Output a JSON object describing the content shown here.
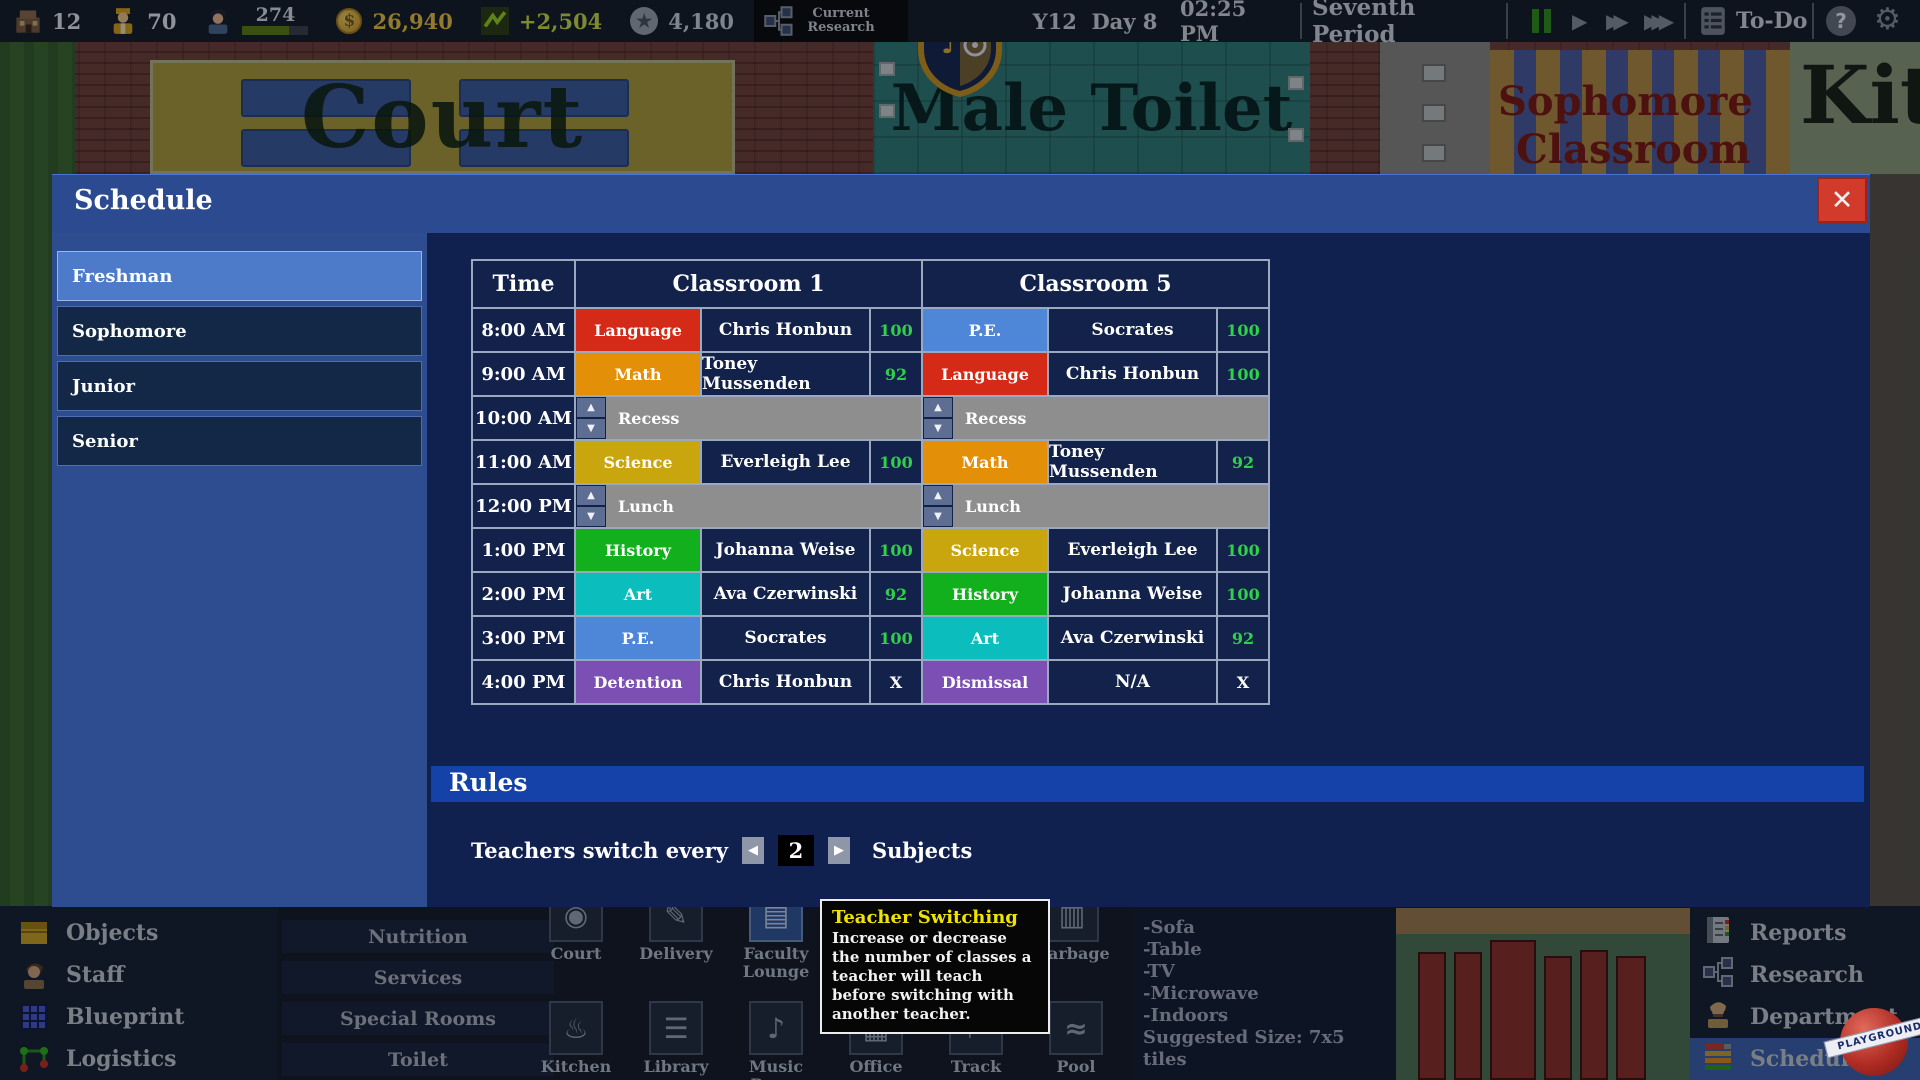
{
  "top_bar": {
    "stats": [
      {
        "icon": "school-building-icon",
        "value": "12",
        "color": "#e6eaee"
      },
      {
        "icon": "principal-icon",
        "value": "70",
        "color": "#e6eaee"
      },
      {
        "icon": "student-icon",
        "value": "274",
        "has_progress": true,
        "progress_pct": 70
      },
      {
        "icon": "coin-icon",
        "value": "26,940",
        "color": "#e8c040"
      },
      {
        "icon": "profit-graph-icon",
        "value": "+2,504",
        "color": "#c8d84a"
      },
      {
        "icon": "star-icon",
        "value": "4,180",
        "color": "#c8d0d8"
      }
    ],
    "current_research": "Current Research",
    "year_day": "Y12  Day 8",
    "clock": "02:25 PM",
    "period": "Seventh Period",
    "todo": "To-Do",
    "help": "?"
  },
  "background": {
    "court_label": "Court",
    "male_toilet_label": "Male Toilet",
    "sophomore_label_line1": "Sophomore",
    "sophomore_label_line2": "Classroom",
    "kitchen_label": "Kitc"
  },
  "schedule_modal": {
    "title": "Schedule",
    "close_glyph": "✕",
    "grade_tabs": [
      {
        "label": "Freshman",
        "selected": true
      },
      {
        "label": "Sophomore",
        "selected": false
      },
      {
        "label": "Junior",
        "selected": false
      },
      {
        "label": "Senior",
        "selected": false
      }
    ],
    "table": {
      "time_header": "Time",
      "classroom_headers": [
        "Classroom 1",
        "Classroom 5"
      ],
      "subject_colors": {
        "Language": "#d62a18",
        "Math": "#e39008",
        "P.E.": "#4e86d8",
        "Science": "#c9a60d",
        "History": "#12b01c",
        "Art": "#0bbdbd",
        "Detention": "#7b4fb4",
        "Dismissal": "#7b4fb4"
      },
      "score_good_color": "#2fd14a",
      "rows": [
        {
          "time": "8:00 AM",
          "type": "class",
          "cells": [
            {
              "subject": "Language",
              "teacher": "Chris Honbun",
              "score": "100"
            },
            {
              "subject": "P.E.",
              "teacher": "Socrates",
              "score": "100"
            }
          ]
        },
        {
          "time": "9:00 AM",
          "type": "class",
          "cells": [
            {
              "subject": "Math",
              "teacher": "Toney Mussenden",
              "score": "92"
            },
            {
              "subject": "Language",
              "teacher": "Chris Honbun",
              "score": "100"
            }
          ]
        },
        {
          "time": "10:00 AM",
          "type": "break",
          "label": "Recess"
        },
        {
          "time": "11:00 AM",
          "type": "class",
          "cells": [
            {
              "subject": "Science",
              "teacher": "Everleigh Lee",
              "score": "100"
            },
            {
              "subject": "Math",
              "teacher": "Toney Mussenden",
              "score": "92"
            }
          ]
        },
        {
          "time": "12:00 PM",
          "type": "break",
          "label": "Lunch"
        },
        {
          "time": "1:00 PM",
          "type": "class",
          "cells": [
            {
              "subject": "History",
              "teacher": "Johanna Weise",
              "score": "100"
            },
            {
              "subject": "Science",
              "teacher": "Everleigh Lee",
              "score": "100"
            }
          ]
        },
        {
          "time": "2:00 PM",
          "type": "class",
          "cells": [
            {
              "subject": "Art",
              "teacher": "Ava Czerwinski",
              "score": "92"
            },
            {
              "subject": "History",
              "teacher": "Johanna Weise",
              "score": "100"
            }
          ]
        },
        {
          "time": "3:00 PM",
          "type": "class",
          "cells": [
            {
              "subject": "P.E.",
              "teacher": "Socrates",
              "score": "100"
            },
            {
              "subject": "Art",
              "teacher": "Ava Czerwinski",
              "score": "92"
            }
          ]
        },
        {
          "time": "4:00 PM",
          "type": "class",
          "cells": [
            {
              "subject": "Detention",
              "teacher": "Chris Honbun",
              "score": "X"
            },
            {
              "subject": "Dismissal",
              "teacher": "N/A",
              "score": "X"
            }
          ]
        }
      ]
    },
    "rules": {
      "header": "Rules",
      "switch_rule": {
        "prefix": "Teachers switch every",
        "value": "2",
        "suffix": "Subjects"
      }
    }
  },
  "tooltip": {
    "title": "Teacher Switching",
    "body": "Increase or decrease the number of classes a teacher will teach before switching with another teacher."
  },
  "bottom_ui": {
    "left_menu": [
      {
        "icon": "objects-icon",
        "label": "Objects"
      },
      {
        "icon": "staff-icon",
        "label": "Staff"
      },
      {
        "icon": "blueprint-icon",
        "label": "Blueprint"
      },
      {
        "icon": "logistics-icon",
        "label": "Logistics"
      }
    ],
    "category_buttons": [
      {
        "label": "Nutrition"
      },
      {
        "label": "Services"
      },
      {
        "label": "Special Rooms"
      },
      {
        "label": "Toilet"
      }
    ],
    "room_grid": {
      "row1": [
        {
          "icon": "court-icon",
          "label": "Court",
          "selected": false
        },
        {
          "icon": "delivery-icon",
          "label": "Delivery",
          "selected": false
        },
        {
          "icon": "faculty-lounge-icon",
          "label": "Faculty Lounge",
          "selected": true
        },
        {
          "icon": "garbage-icon",
          "label": "Garbage",
          "selected": false
        }
      ],
      "row2": [
        {
          "icon": "kitchen-icon",
          "label": "Kitchen",
          "selected": false
        },
        {
          "icon": "library-icon",
          "label": "Library",
          "selected": false
        },
        {
          "icon": "music-room-icon",
          "label": "Music Room",
          "selected": false
        },
        {
          "icon": "office-icon",
          "label": "Office",
          "selected": false
        },
        {
          "icon": "track-icon",
          "label": "Track",
          "selected": false
        },
        {
          "icon": "pool-icon",
          "label": "Pool",
          "selected": false
        }
      ]
    },
    "requirements": [
      "-Sofa",
      "-Table",
      "-TV",
      "-Microwave",
      "-Indoors",
      "Suggested Size: 7x5 tiles"
    ],
    "right_menu": [
      {
        "icon": "reports-icon",
        "label": "Reports",
        "selected": false
      },
      {
        "icon": "research-icon",
        "label": "Research",
        "selected": false
      },
      {
        "icon": "department-icon",
        "label": "Department",
        "selected": false
      },
      {
        "icon": "schedule-icon",
        "label": "Schedule",
        "selected": true
      }
    ]
  },
  "watermark": "PLAYGROUND"
}
